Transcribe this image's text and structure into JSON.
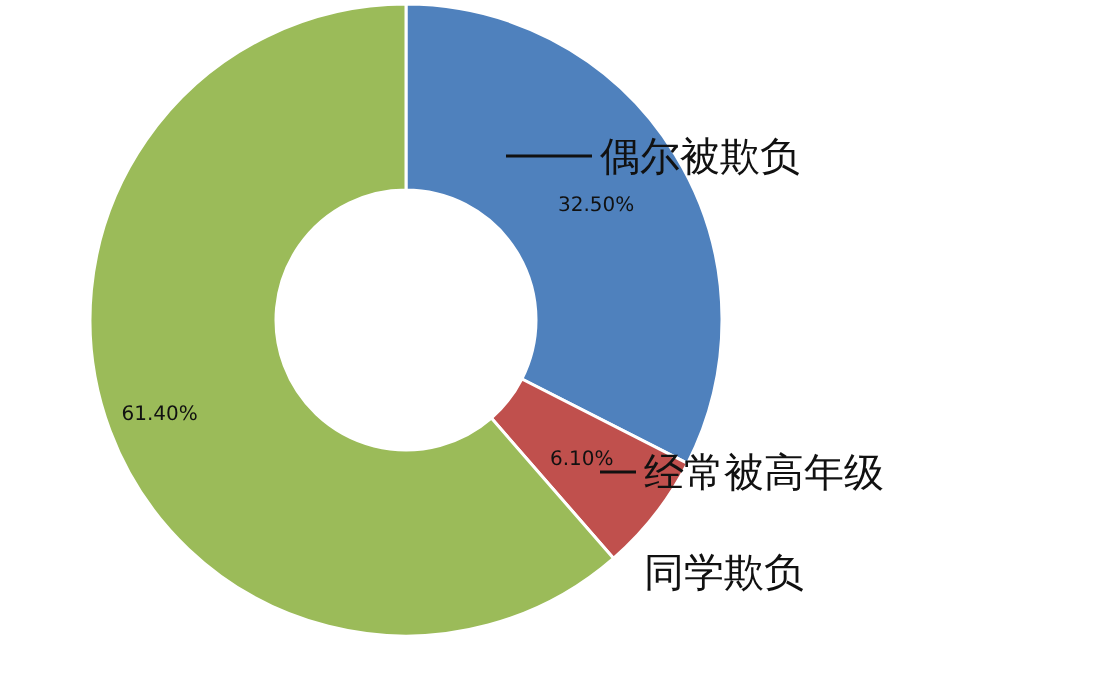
{
  "chart_data": {
    "type": "donut",
    "categories": [
      "偶尔被欺负",
      "经常被高年级同学欺负",
      null
    ],
    "values": [
      32.5,
      6.1,
      61.4
    ],
    "colors": [
      "#4f81bd",
      "#c0504d",
      "#9bbb59"
    ],
    "value_labels": [
      "32.50%",
      "6.10%",
      "61.40%"
    ]
  }
}
